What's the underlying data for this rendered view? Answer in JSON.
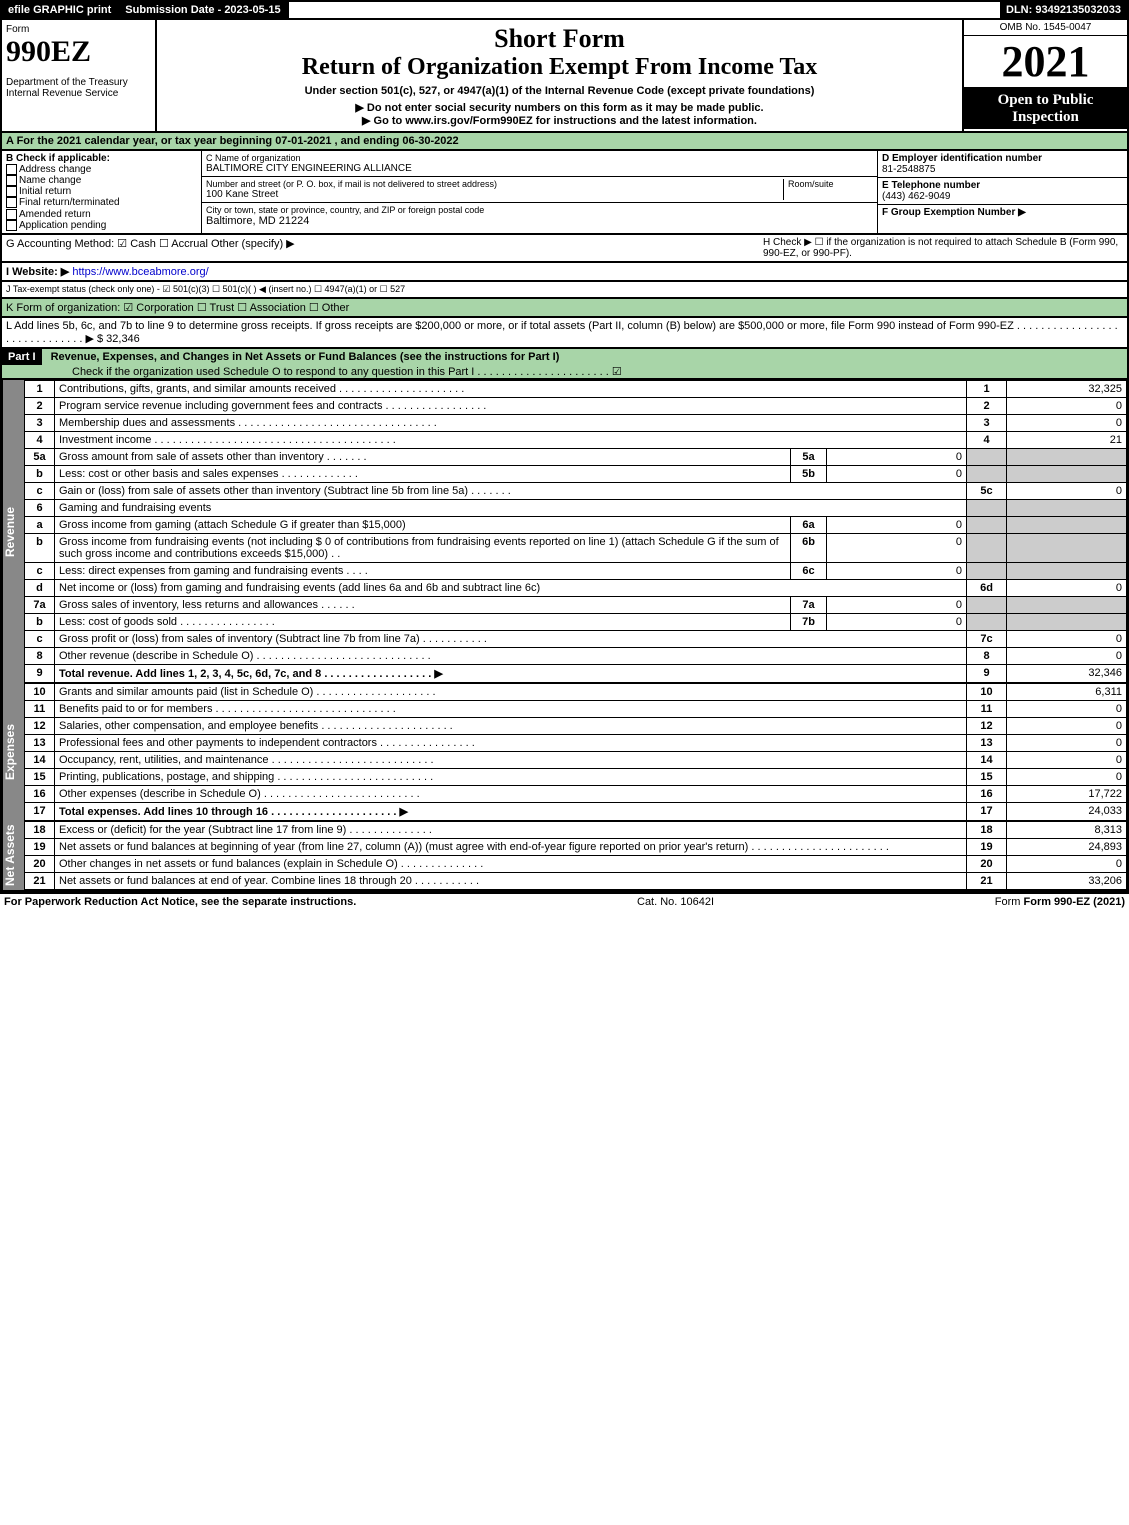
{
  "top": {
    "efile": "efile GRAPHIC print",
    "submission_label": "Submission Date - 2023-05-15",
    "dln": "DLN: 93492135032033"
  },
  "header": {
    "form_word": "Form",
    "form_no": "990EZ",
    "dept1": "Department of the Treasury",
    "dept2": "Internal Revenue Service",
    "title1": "Short Form",
    "title2": "Return of Organization Exempt From Income Tax",
    "subtitle": "Under section 501(c), 527, or 4947(a)(1) of the Internal Revenue Code (except private foundations)",
    "warn": "▶ Do not enter social security numbers on this form as it may be made public.",
    "goto": "▶ Go to www.irs.gov/Form990EZ for instructions and the latest information.",
    "omb": "OMB No. 1545-0047",
    "year": "2021",
    "open": "Open to Public Inspection"
  },
  "a": "A  For the 2021 calendar year, or tax year beginning 07-01-2021 , and ending 06-30-2022",
  "b": {
    "hdr": "B  Check if applicable:",
    "opts": [
      "Address change",
      "Name change",
      "Initial return",
      "Final return/terminated",
      "Amended return",
      "Application pending"
    ]
  },
  "c": {
    "name_lbl": "C Name of organization",
    "name": "BALTIMORE CITY ENGINEERING ALLIANCE",
    "addr_lbl": "Number and street (or P. O. box, if mail is not delivered to street address)",
    "addr": "100 Kane Street",
    "room_lbl": "Room/suite",
    "city_lbl": "City or town, state or province, country, and ZIP or foreign postal code",
    "city": "Baltimore, MD  21224"
  },
  "d": {
    "lbl": "D Employer identification number",
    "val": "81-2548875"
  },
  "e": {
    "lbl": "E Telephone number",
    "val": "(443) 462-9049"
  },
  "f": {
    "lbl": "F Group Exemption Number  ▶"
  },
  "g": "G Accounting Method:   ☑ Cash  ☐ Accrual   Other (specify) ▶",
  "h": "H  Check ▶  ☐  if the organization is not required to attach Schedule B (Form 990, 990-EZ, or 990-PF).",
  "i_lbl": "I Website: ▶",
  "i_url": "https://www.bceabmore.org/",
  "j": "J Tax-exempt status (check only one) -  ☑ 501(c)(3) ☐ 501(c)(  ) ◀ (insert no.) ☐ 4947(a)(1) or ☐ 527",
  "k": "K Form of organization:   ☑ Corporation  ☐ Trust  ☐ Association  ☐ Other",
  "l": "L Add lines 5b, 6c, and 7b to line 9 to determine gross receipts. If gross receipts are $200,000 or more, or if total assets (Part II, column (B) below) are $500,000 or more, file Form 990 instead of Form 990-EZ . . . . . . . . . . . . . . . . . . . . . . . . . . . . . .  ▶ $ 32,346",
  "part1_hdr": "Part I",
  "part1_title": "Revenue, Expenses, and Changes in Net Assets or Fund Balances (see the instructions for Part I)",
  "part1_sub": "Check if the organization used Schedule O to respond to any question in this Part I . . . . . . . . . . . . . . . . . . . . . .  ☑",
  "sections": {
    "revenue_label": "Revenue",
    "expenses_label": "Expenses",
    "netassets_label": "Net Assets"
  },
  "lines": [
    {
      "n": "1",
      "t": "Contributions, gifts, grants, and similar amounts received . . . . . . . . . . . . . . . . . . . . .",
      "b": "1",
      "v": "32,325"
    },
    {
      "n": "2",
      "t": "Program service revenue including government fees and contracts . . . . . . . . . . . . . . . . .",
      "b": "2",
      "v": "0"
    },
    {
      "n": "3",
      "t": "Membership dues and assessments . . . . . . . . . . . . . . . . . . . . . . . . . . . . . . . . .",
      "b": "3",
      "v": "0"
    },
    {
      "n": "4",
      "t": "Investment income . . . . . . . . . . . . . . . . . . . . . . . . . . . . . . . . . . . . . . . .",
      "b": "4",
      "v": "21"
    },
    {
      "n": "5a",
      "t": "Gross amount from sale of assets other than inventory . . . . . . .",
      "ib": "5a",
      "iv": "0"
    },
    {
      "n": "b",
      "t": "Less: cost or other basis and sales expenses . . . . . . . . . . . . .",
      "ib": "5b",
      "iv": "0"
    },
    {
      "n": "c",
      "t": "Gain or (loss) from sale of assets other than inventory (Subtract line 5b from line 5a) . . . . . . .",
      "b": "5c",
      "v": "0"
    },
    {
      "n": "6",
      "t": "Gaming and fundraising events",
      "noval": true
    },
    {
      "n": "a",
      "t": "Gross income from gaming (attach Schedule G if greater than $15,000)",
      "ib": "6a",
      "iv": "0"
    },
    {
      "n": "b",
      "t": "Gross income from fundraising events (not including $ 0            of contributions from fundraising events reported on line 1) (attach Schedule G if the sum of such gross income and contributions exceeds $15,000)   .  .",
      "ib": "6b",
      "iv": "0"
    },
    {
      "n": "c",
      "t": "Less: direct expenses from gaming and fundraising events   . . . .",
      "ib": "6c",
      "iv": "0"
    },
    {
      "n": "d",
      "t": "Net income or (loss) from gaming and fundraising events (add lines 6a and 6b and subtract line 6c)",
      "b": "6d",
      "v": "0"
    },
    {
      "n": "7a",
      "t": "Gross sales of inventory, less returns and allowances . . . . . .",
      "ib": "7a",
      "iv": "0"
    },
    {
      "n": "b",
      "t": "Less: cost of goods sold       . . . . . . . . . . . . . . . .",
      "ib": "7b",
      "iv": "0"
    },
    {
      "n": "c",
      "t": "Gross profit or (loss) from sales of inventory (Subtract line 7b from line 7a) . . . . . . . . . . .",
      "b": "7c",
      "v": "0"
    },
    {
      "n": "8",
      "t": "Other revenue (describe in Schedule O) . . . . . . . . . . . . . . . . . . . . . . . . . . . . .",
      "b": "8",
      "v": "0"
    },
    {
      "n": "9",
      "t": "Total revenue. Add lines 1, 2, 3, 4, 5c, 6d, 7c, and 8  . . . . . . . . . . . . . . . . . .           ▶",
      "b": "9",
      "v": "32,346",
      "bold": true
    }
  ],
  "exp_lines": [
    {
      "n": "10",
      "t": "Grants and similar amounts paid (list in Schedule O) . . . . . . . . . . . . . . . . . . . .",
      "b": "10",
      "v": "6,311"
    },
    {
      "n": "11",
      "t": "Benefits paid to or for members    . . . . . . . . . . . . . . . . . . . . . . . . . . . . . .",
      "b": "11",
      "v": "0"
    },
    {
      "n": "12",
      "t": "Salaries, other compensation, and employee benefits . . . . . . . . . . . . . . . . . . . . . .",
      "b": "12",
      "v": "0"
    },
    {
      "n": "13",
      "t": "Professional fees and other payments to independent contractors . . . . . . . . . . . . . . . .",
      "b": "13",
      "v": "0"
    },
    {
      "n": "14",
      "t": "Occupancy, rent, utilities, and maintenance . . . . . . . . . . . . . . . . . . . . . . . . . . .",
      "b": "14",
      "v": "0"
    },
    {
      "n": "15",
      "t": "Printing, publications, postage, and shipping . . . . . . . . . . . . . . . . . . . . . . . . . .",
      "b": "15",
      "v": "0"
    },
    {
      "n": "16",
      "t": "Other expenses (describe in Schedule O)    . . . . . . . . . . . . . . . . . . . . . . . . . .",
      "b": "16",
      "v": "17,722"
    },
    {
      "n": "17",
      "t": "Total expenses. Add lines 10 through 16     . . . . . . . . . . . . . . . . . . . . .          ▶",
      "b": "17",
      "v": "24,033",
      "bold": true
    }
  ],
  "na_lines": [
    {
      "n": "18",
      "t": "Excess or (deficit) for the year (Subtract line 17 from line 9)      . . . . . . . . . . . . . .",
      "b": "18",
      "v": "8,313"
    },
    {
      "n": "19",
      "t": "Net assets or fund balances at beginning of year (from line 27, column (A)) (must agree with end-of-year figure reported on prior year's return) . . . . . . . . . . . . . . . . . . . . . . .",
      "b": "19",
      "v": "24,893"
    },
    {
      "n": "20",
      "t": "Other changes in net assets or fund balances (explain in Schedule O) . . . . . . . . . . . . . .",
      "b": "20",
      "v": "0"
    },
    {
      "n": "21",
      "t": "Net assets or fund balances at end of year. Combine lines 18 through 20 . . . . . . . . . . .",
      "b": "21",
      "v": "33,206"
    }
  ],
  "footer": {
    "left": "For Paperwork Reduction Act Notice, see the separate instructions.",
    "mid": "Cat. No. 10642I",
    "right": "Form 990-EZ (2021)"
  }
}
